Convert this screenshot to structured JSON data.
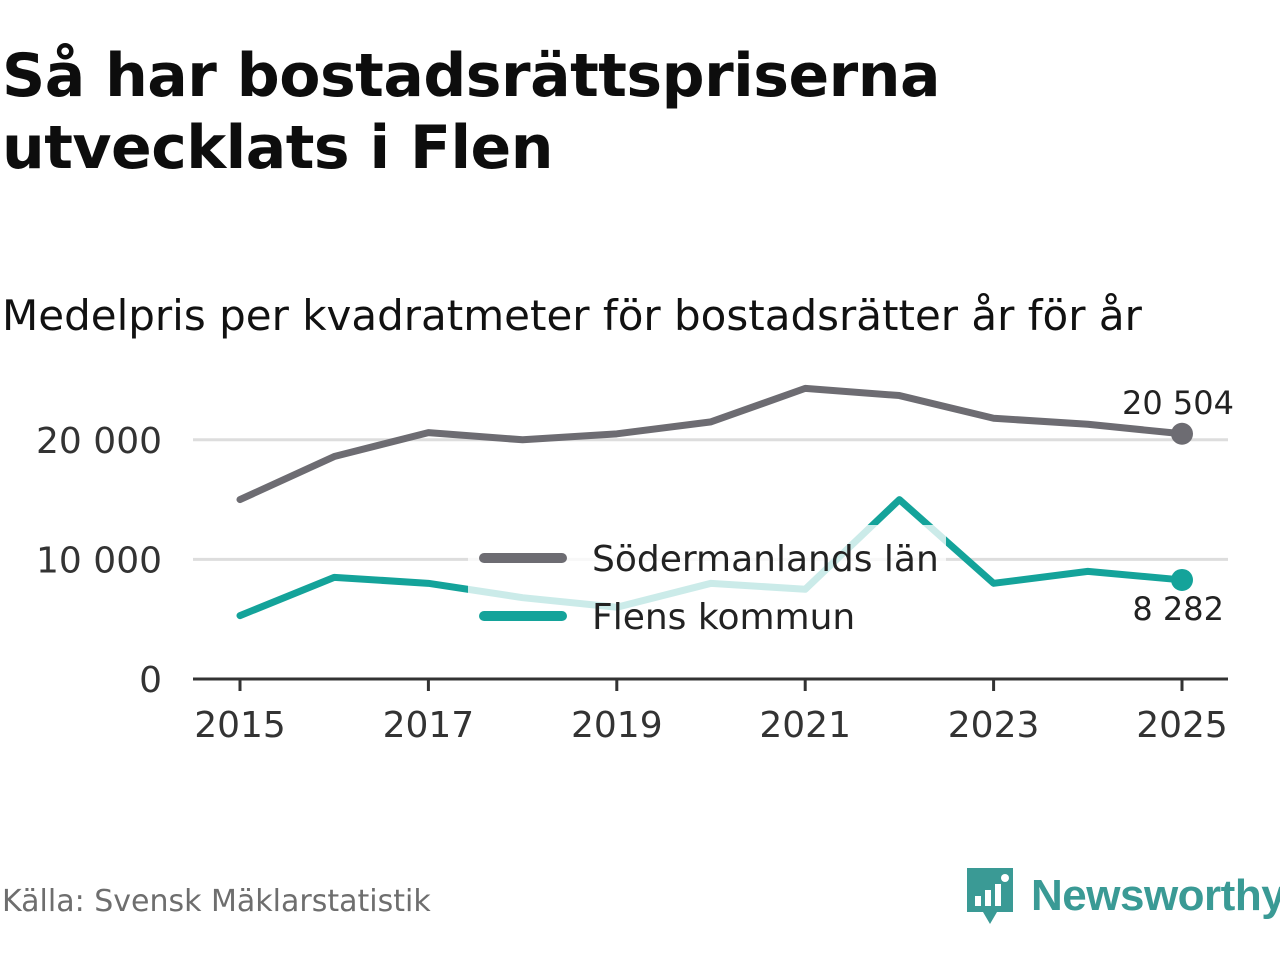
{
  "title": "Så har bostadsrättspriserna utvecklats i Flen",
  "subtitle": "Medelpris per kvadratmeter för bostadsrätter år för år",
  "source": "Källa: Svensk Mäklarstatistik",
  "brand": {
    "name": "Newsworthy",
    "icon": "newsworthy-logo-icon",
    "color": "#3a9a95"
  },
  "chart_data": {
    "type": "line",
    "title": "Så har bostadsrättspriserna utvecklats i Flen",
    "subtitle": "Medelpris per kvadratmeter för bostadsrätter år för år",
    "xlabel": "",
    "ylabel": "",
    "x": [
      2015,
      2016,
      2017,
      2018,
      2019,
      2020,
      2021,
      2022,
      2023,
      2024,
      2025
    ],
    "xticks": [
      2015,
      2017,
      2019,
      2021,
      2023,
      2025
    ],
    "xtick_labels": [
      "2015",
      "2017",
      "2019",
      "2021",
      "2023",
      "2025"
    ],
    "xlim": [
      2015,
      2025
    ],
    "yticks": [
      0,
      10000,
      20000
    ],
    "ytick_labels": [
      "0",
      "10 000",
      "20 000"
    ],
    "ylim": [
      0,
      25000
    ],
    "grid": true,
    "legend_position": "center",
    "series": [
      {
        "name": "Södermanlands län",
        "color": "#6d6c72",
        "values": [
          15000,
          18600,
          20600,
          20000,
          20500,
          21500,
          24300,
          23700,
          21800,
          21300,
          20504
        ],
        "end_label": "20 504"
      },
      {
        "name": "Flens kommun",
        "color": "#14a39a",
        "values": [
          5300,
          8500,
          8000,
          6800,
          6000,
          8000,
          7500,
          15000,
          8000,
          9000,
          8282
        ],
        "end_label": "8 282"
      }
    ]
  }
}
